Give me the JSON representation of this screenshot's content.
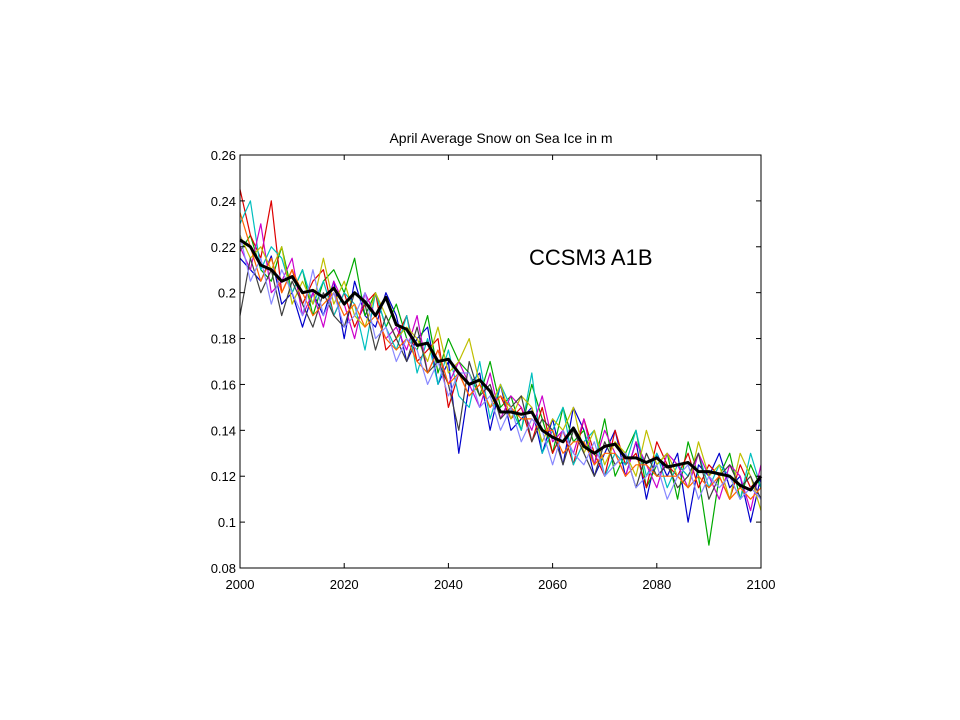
{
  "chart_data": {
    "type": "line",
    "title": "April Average Snow on Sea Ice in m",
    "annotation": "CCSM3 A1B",
    "xlabel": "",
    "ylabel": "",
    "xlim": [
      2000,
      2100
    ],
    "ylim": [
      0.08,
      0.26
    ],
    "xticks": [
      2000,
      2020,
      2040,
      2060,
      2080,
      2100
    ],
    "yticks": [
      0.08,
      0.1,
      0.12,
      0.14,
      0.16,
      0.18,
      0.2,
      0.22,
      0.24,
      0.26
    ],
    "ytick_labels": [
      "0.08",
      "0.1",
      "0.12",
      "0.14",
      "0.16",
      "0.18",
      "0.2",
      "0.22",
      "0.24",
      "0.26"
    ],
    "grid": false,
    "legend": "none",
    "ensemble_colors": [
      "#0000cc",
      "#00aa00",
      "#dd0000",
      "#00bfbf",
      "#cc00cc",
      "#bfbf00",
      "#404040",
      "#ff6600",
      "#8888ff"
    ],
    "ensemble_mean_color": "#000000",
    "ensemble_mean": {
      "x": [
        2000,
        2002,
        2004,
        2006,
        2008,
        2010,
        2012,
        2014,
        2016,
        2018,
        2020,
        2022,
        2024,
        2026,
        2028,
        2030,
        2032,
        2034,
        2036,
        2038,
        2040,
        2042,
        2044,
        2046,
        2048,
        2050,
        2052,
        2054,
        2056,
        2058,
        2060,
        2062,
        2064,
        2066,
        2068,
        2070,
        2072,
        2074,
        2076,
        2078,
        2080,
        2082,
        2084,
        2086,
        2088,
        2090,
        2092,
        2094,
        2096,
        2098,
        2100
      ],
      "y": [
        0.223,
        0.22,
        0.212,
        0.21,
        0.205,
        0.207,
        0.2,
        0.201,
        0.198,
        0.202,
        0.195,
        0.2,
        0.196,
        0.19,
        0.198,
        0.186,
        0.184,
        0.177,
        0.178,
        0.17,
        0.171,
        0.165,
        0.16,
        0.162,
        0.157,
        0.148,
        0.148,
        0.147,
        0.148,
        0.14,
        0.137,
        0.135,
        0.141,
        0.133,
        0.13,
        0.133,
        0.134,
        0.128,
        0.128,
        0.126,
        0.128,
        0.124,
        0.125,
        0.126,
        0.122,
        0.122,
        0.121,
        0.12,
        0.116,
        0.114,
        0.12
      ]
    },
    "ensemble_runs": [
      {
        "y": [
          0.215,
          0.21,
          0.205,
          0.216,
          0.195,
          0.2,
          0.185,
          0.2,
          0.19,
          0.205,
          0.18,
          0.205,
          0.19,
          0.185,
          0.2,
          0.19,
          0.17,
          0.18,
          0.185,
          0.16,
          0.17,
          0.13,
          0.16,
          0.165,
          0.14,
          0.16,
          0.14,
          0.145,
          0.15,
          0.13,
          0.145,
          0.125,
          0.15,
          0.14,
          0.12,
          0.13,
          0.14,
          0.12,
          0.135,
          0.11,
          0.13,
          0.12,
          0.13,
          0.1,
          0.125,
          0.12,
          0.13,
          0.115,
          0.12,
          0.1,
          0.12
        ]
      },
      {
        "y": [
          0.218,
          0.225,
          0.21,
          0.205,
          0.22,
          0.2,
          0.21,
          0.19,
          0.205,
          0.21,
          0.2,
          0.215,
          0.19,
          0.2,
          0.185,
          0.195,
          0.18,
          0.175,
          0.19,
          0.165,
          0.18,
          0.17,
          0.165,
          0.155,
          0.17,
          0.15,
          0.155,
          0.14,
          0.16,
          0.145,
          0.13,
          0.15,
          0.135,
          0.14,
          0.125,
          0.145,
          0.12,
          0.13,
          0.14,
          0.115,
          0.125,
          0.13,
          0.11,
          0.135,
          0.12,
          0.09,
          0.12,
          0.13,
          0.11,
          0.125,
          0.115
        ]
      },
      {
        "y": [
          0.245,
          0.225,
          0.215,
          0.24,
          0.2,
          0.21,
          0.195,
          0.205,
          0.21,
          0.19,
          0.2,
          0.185,
          0.195,
          0.2,
          0.175,
          0.18,
          0.19,
          0.17,
          0.175,
          0.18,
          0.15,
          0.165,
          0.155,
          0.16,
          0.15,
          0.155,
          0.145,
          0.15,
          0.135,
          0.15,
          0.13,
          0.14,
          0.125,
          0.145,
          0.13,
          0.12,
          0.14,
          0.125,
          0.13,
          0.115,
          0.135,
          0.125,
          0.12,
          0.13,
          0.115,
          0.125,
          0.12,
          0.11,
          0.125,
          0.115,
          0.12
        ]
      },
      {
        "y": [
          0.23,
          0.24,
          0.21,
          0.22,
          0.215,
          0.2,
          0.21,
          0.195,
          0.205,
          0.19,
          0.2,
          0.195,
          0.175,
          0.2,
          0.185,
          0.175,
          0.19,
          0.165,
          0.18,
          0.16,
          0.175,
          0.155,
          0.15,
          0.17,
          0.145,
          0.16,
          0.15,
          0.14,
          0.165,
          0.13,
          0.14,
          0.15,
          0.125,
          0.135,
          0.14,
          0.12,
          0.13,
          0.125,
          0.14,
          0.12,
          0.13,
          0.115,
          0.125,
          0.12,
          0.13,
          0.115,
          0.125,
          0.12,
          0.11,
          0.13,
          0.115
        ]
      },
      {
        "y": [
          0.22,
          0.21,
          0.23,
          0.2,
          0.205,
          0.215,
          0.19,
          0.2,
          0.185,
          0.205,
          0.195,
          0.18,
          0.2,
          0.19,
          0.18,
          0.185,
          0.175,
          0.19,
          0.165,
          0.175,
          0.16,
          0.17,
          0.16,
          0.15,
          0.165,
          0.145,
          0.155,
          0.15,
          0.14,
          0.155,
          0.135,
          0.14,
          0.13,
          0.145,
          0.125,
          0.14,
          0.13,
          0.12,
          0.135,
          0.125,
          0.115,
          0.13,
          0.125,
          0.115,
          0.13,
          0.12,
          0.11,
          0.125,
          0.12,
          0.105,
          0.125
        ]
      },
      {
        "y": [
          0.225,
          0.215,
          0.22,
          0.21,
          0.22,
          0.195,
          0.205,
          0.195,
          0.215,
          0.195,
          0.205,
          0.19,
          0.185,
          0.2,
          0.19,
          0.18,
          0.185,
          0.18,
          0.17,
          0.185,
          0.165,
          0.17,
          0.18,
          0.16,
          0.15,
          0.16,
          0.145,
          0.155,
          0.15,
          0.135,
          0.145,
          0.14,
          0.15,
          0.13,
          0.14,
          0.125,
          0.135,
          0.13,
          0.12,
          0.14,
          0.125,
          0.13,
          0.12,
          0.115,
          0.135,
          0.12,
          0.125,
          0.11,
          0.13,
          0.12,
          0.105
        ]
      },
      {
        "y": [
          0.19,
          0.215,
          0.2,
          0.21,
          0.19,
          0.205,
          0.195,
          0.185,
          0.2,
          0.19,
          0.185,
          0.2,
          0.195,
          0.175,
          0.19,
          0.18,
          0.17,
          0.185,
          0.165,
          0.17,
          0.16,
          0.14,
          0.17,
          0.155,
          0.16,
          0.145,
          0.15,
          0.155,
          0.135,
          0.145,
          0.14,
          0.125,
          0.14,
          0.13,
          0.12,
          0.135,
          0.125,
          0.13,
          0.115,
          0.13,
          0.12,
          0.125,
          0.115,
          0.12,
          0.13,
          0.11,
          0.12,
          0.125,
          0.115,
          0.12,
          0.11
        ]
      },
      {
        "y": [
          0.235,
          0.22,
          0.205,
          0.215,
          0.2,
          0.21,
          0.2,
          0.19,
          0.195,
          0.2,
          0.19,
          0.195,
          0.185,
          0.19,
          0.18,
          0.175,
          0.18,
          0.17,
          0.165,
          0.175,
          0.16,
          0.165,
          0.155,
          0.16,
          0.15,
          0.155,
          0.15,
          0.145,
          0.145,
          0.14,
          0.14,
          0.13,
          0.135,
          0.135,
          0.125,
          0.13,
          0.13,
          0.12,
          0.125,
          0.125,
          0.12,
          0.12,
          0.12,
          0.115,
          0.12,
          0.115,
          0.12,
          0.11,
          0.115,
          0.11,
          0.115
        ]
      },
      {
        "y": [
          0.225,
          0.205,
          0.215,
          0.195,
          0.21,
          0.2,
          0.19,
          0.21,
          0.19,
          0.2,
          0.185,
          0.19,
          0.2,
          0.18,
          0.185,
          0.17,
          0.18,
          0.175,
          0.16,
          0.17,
          0.155,
          0.165,
          0.165,
          0.15,
          0.155,
          0.14,
          0.15,
          0.135,
          0.145,
          0.14,
          0.125,
          0.14,
          0.13,
          0.125,
          0.135,
          0.12,
          0.125,
          0.13,
          0.115,
          0.12,
          0.125,
          0.11,
          0.12,
          0.125,
          0.11,
          0.12,
          0.115,
          0.12,
          0.11,
          0.115,
          0.11
        ]
      }
    ]
  }
}
